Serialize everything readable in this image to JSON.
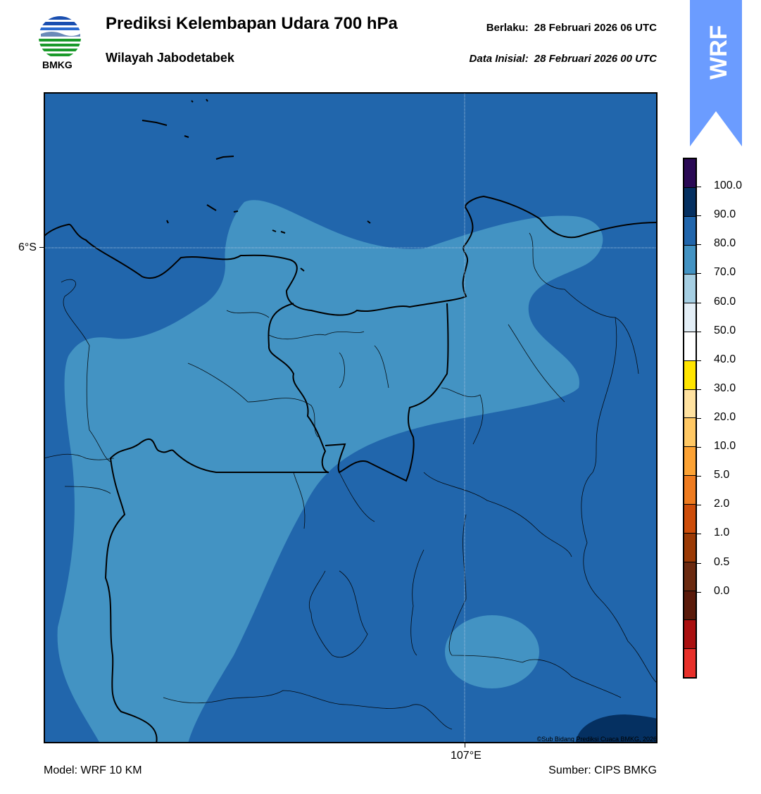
{
  "header": {
    "title": "Prediksi Kelembapan Udara 700 hPa",
    "subtitle": "Wilayah Jabodetabek",
    "valid_label": "Berlaku:",
    "valid_time": "28 Februari 2026 06 UTC",
    "init_label": "Data Inisial:",
    "init_time": "28 Februari 2026 00 UTC"
  },
  "logo": {
    "text": "BMKG",
    "icon": "bmkg-logo"
  },
  "badge": {
    "text": "WRF",
    "color": "#6b9cff"
  },
  "map": {
    "lat_label": "6°S",
    "lon_label": "107°E",
    "credit": "©Sub Bidang Prediksi Cuaca BMKG, 2026",
    "fill_colors": {
      "70-80": "#4393c3",
      "80-90": "#2166ac",
      "90-100": "#053061"
    }
  },
  "colorbar": {
    "labels": [
      "100.0",
      "90.0",
      "80.0",
      "70.0",
      "60.0",
      "50.0",
      "40.0",
      "30.0",
      "20.0",
      "10.0",
      "5.0",
      "2.0",
      "1.0",
      "0.5",
      "0.0"
    ],
    "colors_top_to_bottom": [
      "#2a0a55",
      "#053061",
      "#2166ac",
      "#4393c3",
      "#a6cfe3",
      "#e3eef6",
      "#ffffff",
      "#ffe500",
      "#ffe2a0",
      "#ffc864",
      "#fca234",
      "#ee7b1f",
      "#cd4d0a",
      "#9b3a05",
      "#6b2a10",
      "#5a1a0a",
      "#aa1010",
      "#e8302a"
    ]
  },
  "footer": {
    "model": "Model: WRF 10 KM",
    "source": "Sumber: CIPS BMKG"
  }
}
